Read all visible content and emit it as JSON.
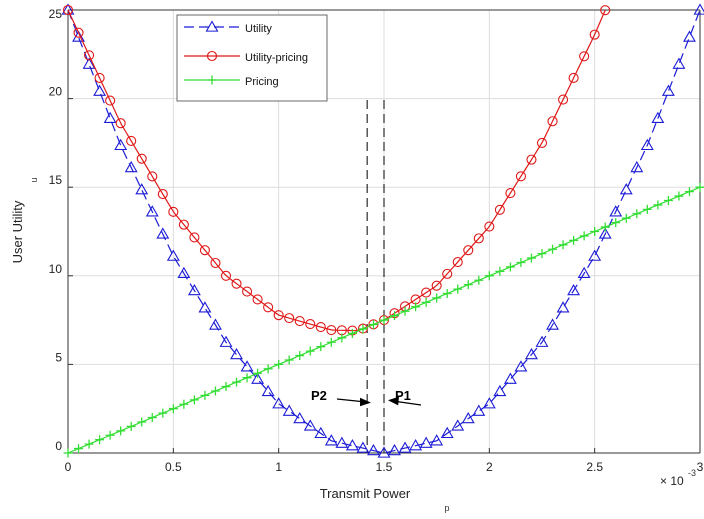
{
  "chart_data": {
    "type": "line",
    "xlabel": "Transmit Power",
    "xlabel_subscript": "p",
    "ylabel": "User Utility",
    "ylabel_subscript": "u",
    "x_exponent_base": "× 10",
    "x_exponent_power": "-3",
    "xlim": [
      0,
      3
    ],
    "ylim": [
      0,
      25
    ],
    "x_ticks": [
      0,
      0.5,
      1,
      1.5,
      2,
      2.5,
      3
    ],
    "x_tick_labels": [
      "0",
      "0.5",
      "1",
      "1.5",
      "2",
      "2.5",
      "3"
    ],
    "y_ticks": [
      0,
      5,
      10,
      15,
      20,
      25
    ],
    "y_tick_labels": [
      "0",
      "5",
      "10",
      "15",
      "20",
      "25"
    ],
    "grid": true,
    "legend_position": "top-left",
    "series": [
      {
        "name": "Utility",
        "color": "#1c1cd6",
        "line_style": "dashed",
        "marker": "triangle",
        "x": [
          0,
          0.25,
          0.5,
          0.75,
          1.0,
          1.25,
          1.5,
          1.75,
          2.0,
          2.25,
          2.5,
          2.75,
          3.0
        ],
        "y": [
          25,
          17.36,
          11.11,
          6.25,
          2.78,
          0.69,
          0,
          0.69,
          2.78,
          6.25,
          11.11,
          17.36,
          25
        ]
      },
      {
        "name": "Utility-pricing",
        "color": "#e01818",
        "line_style": "solid",
        "marker": "circle",
        "x": [
          0,
          0.25,
          0.5,
          0.75,
          1.0,
          1.25,
          1.375,
          1.5,
          1.75,
          2.0,
          2.25,
          2.5,
          2.55
        ],
        "y": [
          25,
          18.61,
          13.61,
          10.0,
          7.78,
          6.94,
          6.9,
          7.5,
          9.44,
          12.78,
          17.5,
          23.61,
          24.99
        ]
      },
      {
        "name": "Pricing",
        "color": "#33dd33",
        "line_style": "solid",
        "marker": "plus",
        "x": [
          0,
          0.5,
          1.0,
          1.5,
          2.0,
          2.5,
          3.0
        ],
        "y": [
          0,
          2.5,
          5.0,
          7.5,
          10.0,
          12.5,
          15.0
        ]
      }
    ],
    "vertical_lines": [
      {
        "label": "P2",
        "x": 1.42
      },
      {
        "label": "P1",
        "x": 1.5
      }
    ],
    "annotations": [
      {
        "text": "P2"
      },
      {
        "text": "P1"
      }
    ]
  }
}
